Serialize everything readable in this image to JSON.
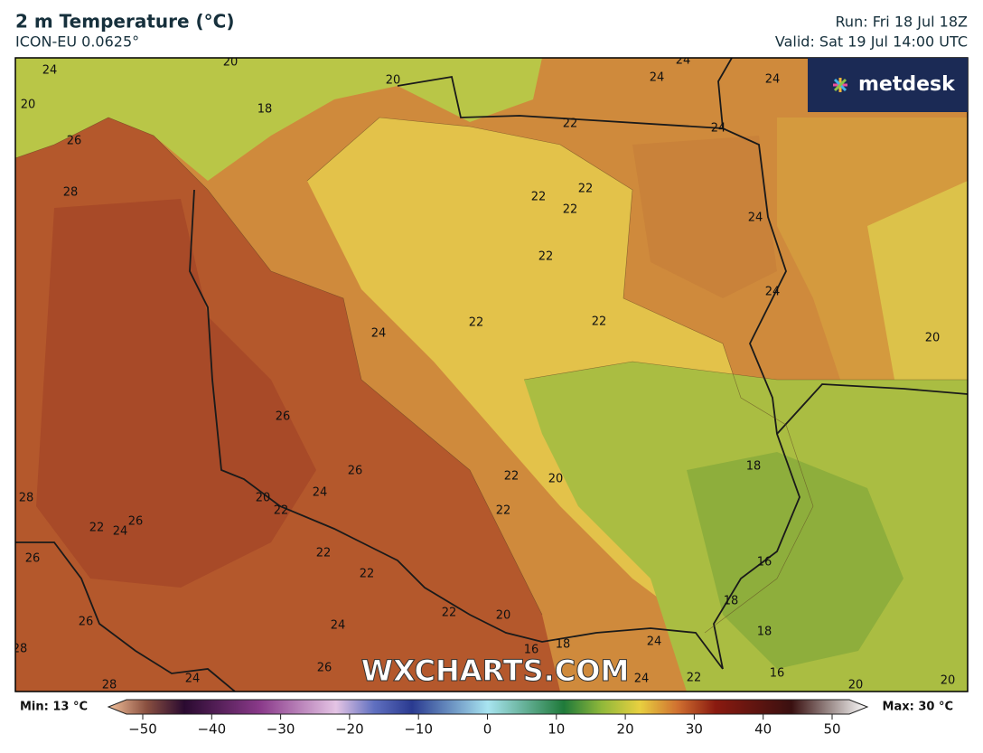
{
  "header": {
    "title": "2 m Temperature (°C)",
    "model": "ICON-EU 0.0625°",
    "run": "Run: Fri 18 Jul 18Z",
    "valid": "Valid: Sat 19 Jul 14:00 UTC"
  },
  "logo": "metdesk",
  "watermark": "WXCHARTS.COM",
  "colorbar": {
    "min_label": "Min: 13 °C",
    "max_label": "Max: 30 °C",
    "range": [
      -50,
      50
    ],
    "ticks": [
      {
        "value": -50,
        "label": "−50"
      },
      {
        "value": -40,
        "label": "−40"
      },
      {
        "value": -30,
        "label": "−30"
      },
      {
        "value": -20,
        "label": "−20"
      },
      {
        "value": -10,
        "label": "−10"
      },
      0,
      10,
      20,
      30,
      40,
      50
    ]
  },
  "contour_labels": [
    24,
    20,
    20,
    18,
    20,
    26,
    28,
    24,
    24,
    24,
    22,
    24,
    22,
    22,
    22,
    24,
    22,
    24,
    22,
    22,
    24,
    20,
    26,
    26,
    22,
    20,
    18,
    28,
    20,
    24,
    22,
    22,
    22,
    26,
    24,
    26,
    22,
    22,
    16,
    18,
    26,
    22,
    20,
    24,
    16,
    18,
    24,
    18,
    28,
    26,
    24,
    24,
    22,
    16,
    28,
    20,
    20
  ]
}
